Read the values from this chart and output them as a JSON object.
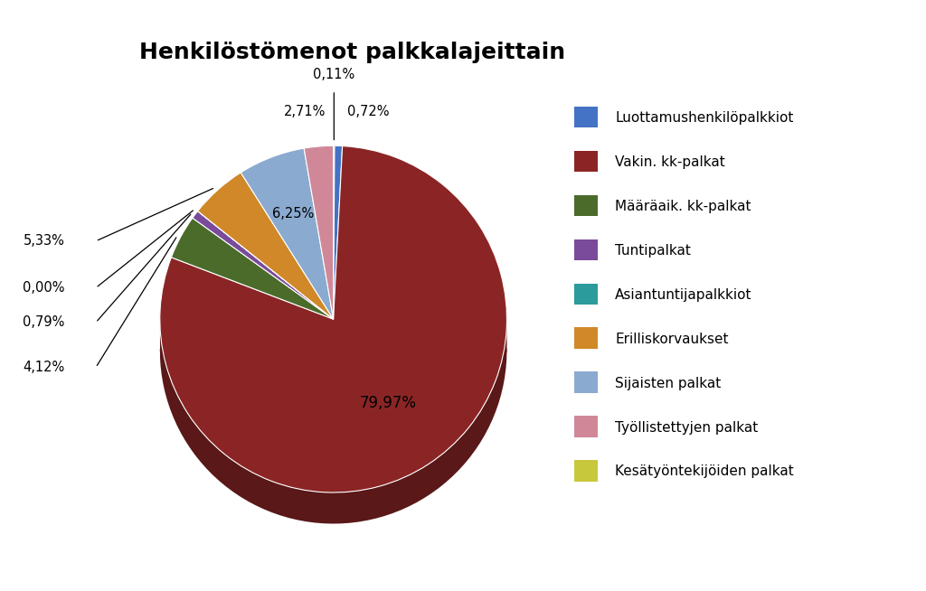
{
  "title": "Henkilöstömenot palkkalajeittain",
  "legend_labels": [
    "Luottamushenkilöpalkkiot",
    "Vakin. kk-palkat",
    "Määräaik. kk-palkat",
    "Tuntipalkat",
    "Asiantuntijapalkkiot",
    "Erilliskorvaukset",
    "Sijaisten palkat",
    "Työllistettyjen palkat",
    "Kesätyöntekijöiden palkat"
  ],
  "ordered_labels": [
    "Kesätyöntekijöiden palkat",
    "Luottamushenkilöpalkkiot",
    "Vakin. kk-palkat",
    "Määräaik. kk-palkat",
    "Tuntipalkat",
    "Asiantuntijapalkkiot",
    "Erilliskorvaukset",
    "Sijaisten palkat",
    "Työllistettyjen palkat"
  ],
  "ordered_values": [
    0.11,
    0.72,
    79.97,
    4.12,
    0.79,
    0.001,
    5.33,
    6.25,
    2.71
  ],
  "ordered_pcts": [
    "0,11%",
    "0,72%",
    "79,97%",
    "4,12%",
    "0,79%",
    "0,00%",
    "5,33%",
    "6,25%",
    "2,71%"
  ],
  "ordered_colors": [
    "#C8C83C",
    "#4472C4",
    "#8B2525",
    "#4B6B2B",
    "#7B4B9B",
    "#2B9B9B",
    "#D08828",
    "#8BAAD0",
    "#D08898"
  ],
  "legend_colors": [
    "#4472C4",
    "#8B2525",
    "#4B6B2B",
    "#7B4B9B",
    "#2B9B9B",
    "#D08828",
    "#8BAAD0",
    "#D08898",
    "#C8C83C"
  ],
  "title_fontsize": 18,
  "label_fontsize": 10.5,
  "depth": 0.18
}
